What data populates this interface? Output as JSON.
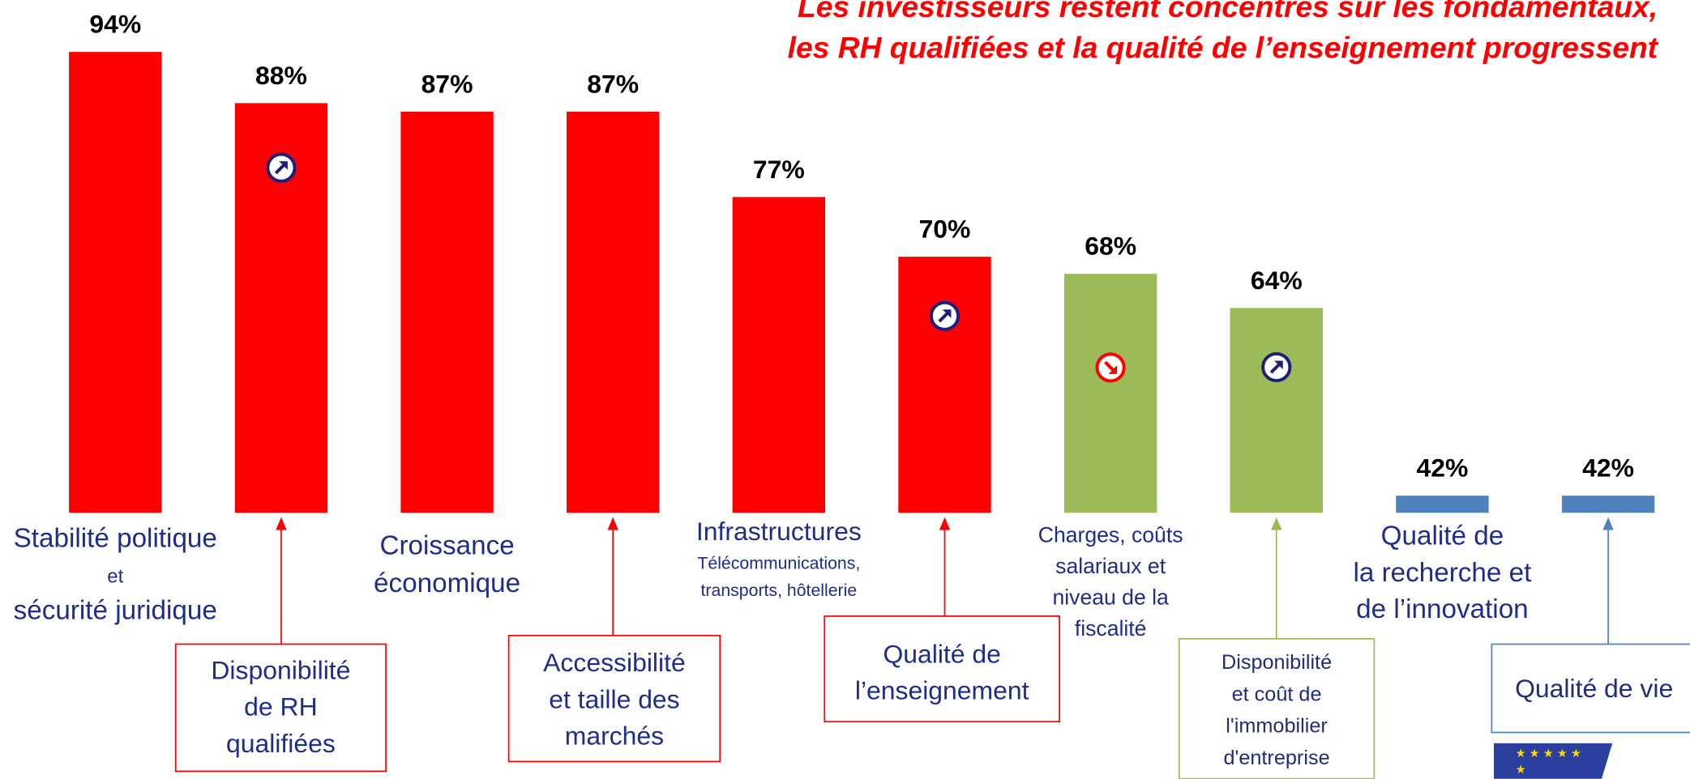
{
  "chart_data": {
    "type": "bar",
    "title": [
      "Les investisseurs restent concentrés sur les fondamentaux,",
      "les RH qualifiées et la qualité de l’enseignement progressent"
    ],
    "categories": [
      [
        "Stabilité politique",
        "et",
        "sécurité juridique"
      ],
      [
        "Disponibilité",
        "de RH",
        "qualifiées"
      ],
      [
        "Croissance",
        "économique"
      ],
      [
        "Accessibilité",
        "et taille des",
        "marchés"
      ],
      [
        "Infrastructures",
        "Télécommunications,",
        "transports, hôtellerie"
      ],
      [
        "Qualité de",
        "l’enseignement"
      ],
      [
        "Charges, coûts",
        "salariaux et",
        "niveau de la",
        "fiscalité"
      ],
      [
        "Disponibilité",
        "et coût de",
        "l'immobilier",
        "d'entreprise"
      ],
      [
        "Qualité de",
        "la recherche et",
        "de l’innovation"
      ],
      [
        "Qualité de vie"
      ]
    ],
    "values": [
      94,
      88,
      87,
      87,
      77,
      70,
      68,
      64,
      42,
      42
    ],
    "value_labels": [
      "94%",
      "88%",
      "87%",
      "87%",
      "77%",
      "70%",
      "68%",
      "64%",
      "42%",
      "42%"
    ],
    "colors": [
      "#ff0000",
      "#ff0000",
      "#ff0000",
      "#ff0000",
      "#ff0000",
      "#ff0000",
      "#9bbb59",
      "#9bbb59",
      "#4f81bd",
      "#4f81bd"
    ],
    "label_boxed": [
      false,
      true,
      false,
      true,
      false,
      true,
      false,
      true,
      false,
      true
    ],
    "label_small_lines": [
      [
        1
      ],
      [],
      [],
      [],
      [
        1,
        2
      ],
      [],
      [],
      [],
      [],
      []
    ],
    "trends": [
      null,
      "up",
      null,
      null,
      null,
      "up",
      "down",
      "up",
      null,
      null
    ],
    "ylim": [
      40,
      94
    ]
  }
}
